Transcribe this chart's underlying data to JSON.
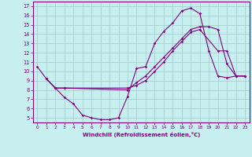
{
  "xlabel": "Windchill (Refroidissement éolien,°C)",
  "xlim": [
    -0.5,
    23.5
  ],
  "ylim": [
    4.5,
    17.5
  ],
  "yticks": [
    5,
    6,
    7,
    8,
    9,
    10,
    11,
    12,
    13,
    14,
    15,
    16,
    17
  ],
  "xticks": [
    0,
    1,
    2,
    3,
    4,
    5,
    6,
    7,
    8,
    9,
    10,
    11,
    12,
    13,
    14,
    15,
    16,
    17,
    18,
    19,
    20,
    21,
    22,
    23
  ],
  "bg_color": "#c8efef",
  "grid_color": "#a0cccc",
  "line_color": "#800080",
  "curve1_x": [
    0,
    1,
    2,
    3,
    4,
    5,
    6,
    7,
    8,
    9,
    10,
    11,
    12,
    13,
    14,
    15,
    16,
    17,
    18,
    19,
    20,
    21,
    22,
    23
  ],
  "curve1_y": [
    10.5,
    9.2,
    8.2,
    7.2,
    6.5,
    5.3,
    5.0,
    4.8,
    4.8,
    5.0,
    7.3,
    10.3,
    10.5,
    13.0,
    14.3,
    15.2,
    16.5,
    16.8,
    16.2,
    12.2,
    9.5,
    9.3,
    9.5,
    9.5
  ],
  "curve2_x": [
    1,
    2,
    3,
    10,
    11,
    12,
    13,
    14,
    15,
    16,
    17,
    18,
    20,
    21,
    22,
    23
  ],
  "curve2_y": [
    9.2,
    8.2,
    8.2,
    8.2,
    8.5,
    9.0,
    10.0,
    11.0,
    12.2,
    13.2,
    14.2,
    14.5,
    12.2,
    12.2,
    9.5,
    9.5
  ],
  "curve3_x": [
    1,
    2,
    3,
    10,
    11,
    12,
    13,
    14,
    15,
    16,
    17,
    18,
    19,
    20,
    21,
    22,
    23
  ],
  "curve3_y": [
    9.2,
    8.2,
    8.2,
    8.0,
    8.8,
    9.5,
    10.5,
    11.5,
    12.5,
    13.5,
    14.5,
    14.8,
    14.8,
    14.5,
    10.8,
    9.5,
    9.5
  ]
}
